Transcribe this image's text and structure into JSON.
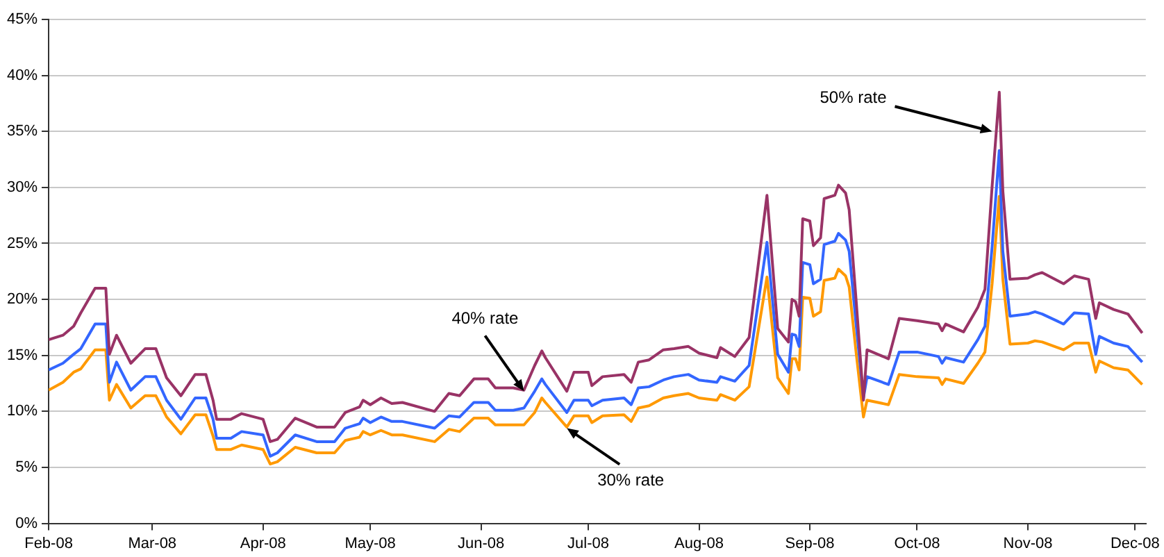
{
  "chart_data": {
    "type": "line",
    "x": [
      "2008-02-01",
      "2008-02-05",
      "2008-02-08",
      "2008-02-10",
      "2008-02-14",
      "2008-02-17",
      "2008-02-18",
      "2008-02-20",
      "2008-02-24",
      "2008-02-28",
      "2008-03-02",
      "2008-03-05",
      "2008-03-09",
      "2008-03-13",
      "2008-03-16",
      "2008-03-18",
      "2008-03-19",
      "2008-03-23",
      "2008-03-26",
      "2008-04-01",
      "2008-04-03",
      "2008-04-05",
      "2008-04-10",
      "2008-04-16",
      "2008-04-21",
      "2008-04-24",
      "2008-04-28",
      "2008-04-29",
      "2008-05-01",
      "2008-05-04",
      "2008-05-07",
      "2008-05-10",
      "2008-05-19",
      "2008-05-23",
      "2008-05-26",
      "2008-05-30",
      "2008-06-03",
      "2008-06-05",
      "2008-06-10",
      "2008-06-13",
      "2008-06-16",
      "2008-06-18",
      "2008-06-19",
      "2008-06-25",
      "2008-06-27",
      "2008-07-01",
      "2008-07-02",
      "2008-07-05",
      "2008-07-11",
      "2008-07-13",
      "2008-07-15",
      "2008-07-18",
      "2008-07-22",
      "2008-07-25",
      "2008-07-29",
      "2008-08-01",
      "2008-08-06",
      "2008-08-07",
      "2008-08-11",
      "2008-08-15",
      "2008-08-20",
      "2008-08-23",
      "2008-08-26",
      "2008-08-27",
      "2008-08-28",
      "2008-08-29",
      "2008-08-30",
      "2008-09-01",
      "2008-09-02",
      "2008-09-04",
      "2008-09-05",
      "2008-09-08",
      "2008-09-09",
      "2008-09-11",
      "2008-09-12",
      "2008-09-14",
      "2008-09-16",
      "2008-09-17",
      "2008-09-23",
      "2008-09-26",
      "2008-10-01",
      "2008-10-07",
      "2008-10-08",
      "2008-10-09",
      "2008-10-14",
      "2008-10-18",
      "2008-10-20",
      "2008-10-22",
      "2008-10-24",
      "2008-10-25",
      "2008-10-27",
      "2008-11-01",
      "2008-11-03",
      "2008-11-05",
      "2008-11-11",
      "2008-11-14",
      "2008-11-18",
      "2008-11-20",
      "2008-11-21",
      "2008-11-25",
      "2008-11-29",
      "2008-12-03"
    ],
    "series": [
      {
        "color": "#993366",
        "values": [
          16.4,
          16.8,
          17.6,
          18.8,
          21.0,
          21.0,
          15.1,
          16.8,
          14.3,
          15.6,
          15.6,
          13.0,
          11.4,
          13.3,
          13.3,
          11.0,
          9.3,
          9.3,
          9.8,
          9.3,
          7.3,
          7.5,
          9.4,
          8.6,
          8.6,
          9.9,
          10.4,
          11.0,
          10.6,
          11.2,
          10.7,
          10.8,
          10.0,
          11.6,
          11.4,
          12.9,
          12.9,
          12.1,
          12.1,
          11.9,
          14.1,
          15.4,
          14.8,
          11.8,
          13.5,
          13.5,
          12.3,
          13.1,
          13.3,
          12.6,
          14.4,
          14.6,
          15.5,
          15.6,
          15.8,
          15.2,
          14.8,
          15.7,
          14.9,
          16.6,
          29.3,
          17.4,
          16.2,
          20.0,
          19.8,
          18.5,
          27.2,
          27.0,
          24.8,
          25.5,
          29.0,
          29.3,
          30.2,
          29.5,
          28.0,
          19.7,
          11.0,
          15.5,
          14.7,
          18.3,
          18.1,
          17.8,
          17.2,
          17.8,
          17.1,
          19.3,
          20.9,
          30.1,
          38.5,
          29.7,
          21.8,
          21.9,
          22.2,
          22.4,
          21.4,
          22.1,
          21.8,
          18.3,
          19.7,
          19.1,
          18.7,
          17.0
        ]
      },
      {
        "color": "#3366ff",
        "values": [
          13.7,
          14.3,
          15.1,
          15.6,
          17.8,
          17.8,
          12.6,
          14.4,
          11.9,
          13.1,
          13.1,
          11.0,
          9.3,
          11.2,
          11.2,
          9.3,
          7.6,
          7.6,
          8.2,
          7.9,
          6.0,
          6.3,
          7.9,
          7.3,
          7.3,
          8.5,
          8.9,
          9.4,
          9.0,
          9.5,
          9.1,
          9.1,
          8.5,
          9.6,
          9.5,
          10.8,
          10.8,
          10.1,
          10.1,
          10.3,
          11.8,
          12.9,
          12.4,
          9.9,
          11.0,
          11.0,
          10.5,
          11.0,
          11.2,
          10.6,
          12.1,
          12.2,
          12.8,
          13.1,
          13.3,
          12.8,
          12.6,
          13.1,
          12.7,
          14.1,
          25.1,
          15.1,
          13.5,
          16.9,
          16.8,
          15.8,
          23.3,
          23.1,
          21.4,
          21.8,
          24.9,
          25.2,
          25.9,
          25.3,
          24.3,
          17.6,
          11.2,
          13.1,
          12.4,
          15.3,
          15.3,
          14.9,
          14.3,
          14.8,
          14.4,
          16.4,
          17.6,
          24.7,
          33.3,
          24.3,
          18.5,
          18.7,
          18.9,
          18.7,
          17.8,
          18.8,
          18.7,
          15.1,
          16.7,
          16.1,
          15.8,
          14.4
        ]
      },
      {
        "color": "#ff9900",
        "values": [
          11.9,
          12.6,
          13.5,
          13.8,
          15.5,
          15.5,
          11.0,
          12.4,
          10.3,
          11.4,
          11.4,
          9.5,
          8.0,
          9.7,
          9.7,
          7.8,
          6.6,
          6.6,
          7.0,
          6.6,
          5.3,
          5.5,
          6.8,
          6.3,
          6.3,
          7.4,
          7.7,
          8.2,
          7.9,
          8.3,
          7.9,
          7.9,
          7.3,
          8.4,
          8.2,
          9.4,
          9.4,
          8.8,
          8.8,
          8.8,
          9.9,
          11.2,
          10.8,
          8.6,
          9.6,
          9.6,
          9.0,
          9.6,
          9.7,
          9.1,
          10.3,
          10.5,
          11.2,
          11.4,
          11.6,
          11.2,
          11.0,
          11.5,
          11.0,
          12.2,
          22.0,
          13.0,
          11.6,
          14.7,
          14.7,
          13.7,
          20.2,
          20.1,
          18.5,
          18.9,
          21.7,
          21.9,
          22.7,
          22.1,
          21.1,
          15.1,
          9.5,
          11.0,
          10.6,
          13.3,
          13.1,
          13.0,
          12.4,
          12.9,
          12.5,
          14.3,
          15.3,
          21.4,
          29.2,
          21.8,
          16.0,
          16.1,
          16.3,
          16.2,
          15.5,
          16.1,
          16.1,
          13.5,
          14.5,
          13.9,
          13.7,
          12.4
        ]
      }
    ],
    "xlim": [
      "2008-02-01",
      "2008-12-04"
    ],
    "xticks": [
      {
        "value": "2008-02-01",
        "label": "Feb-08"
      },
      {
        "value": "2008-03-01",
        "label": "Mar-08"
      },
      {
        "value": "2008-04-01",
        "label": "Apr-08"
      },
      {
        "value": "2008-05-01",
        "label": "May-08"
      },
      {
        "value": "2008-06-01",
        "label": "Jun-08"
      },
      {
        "value": "2008-07-01",
        "label": "Jul-08"
      },
      {
        "value": "2008-08-01",
        "label": "Aug-08"
      },
      {
        "value": "2008-09-01",
        "label": "Sep-08"
      },
      {
        "value": "2008-10-01",
        "label": "Oct-08"
      },
      {
        "value": "2008-11-01",
        "label": "Nov-08"
      },
      {
        "value": "2008-12-01",
        "label": "Dec-08"
      }
    ],
    "ylim": [
      0,
      45
    ],
    "yticks": [
      {
        "value": 0,
        "label": "0%"
      },
      {
        "value": 5,
        "label": "5%"
      },
      {
        "value": 10,
        "label": "10%"
      },
      {
        "value": 15,
        "label": "15%"
      },
      {
        "value": 20,
        "label": "20%"
      },
      {
        "value": 25,
        "label": "25%"
      },
      {
        "value": 30,
        "label": "30%"
      },
      {
        "value": 35,
        "label": "35%"
      },
      {
        "value": 40,
        "label": "40%"
      },
      {
        "value": 45,
        "label": "45%"
      }
    ],
    "grid": "y",
    "marker": "none",
    "annotations": [
      {
        "text": "50% rate",
        "x": "2008-10-22",
        "y": 35
      },
      {
        "text": "40% rate",
        "x": "2008-06-13",
        "y": 11.8
      },
      {
        "text": "30% rate",
        "x": "2008-06-25",
        "y": 8.5
      }
    ]
  }
}
